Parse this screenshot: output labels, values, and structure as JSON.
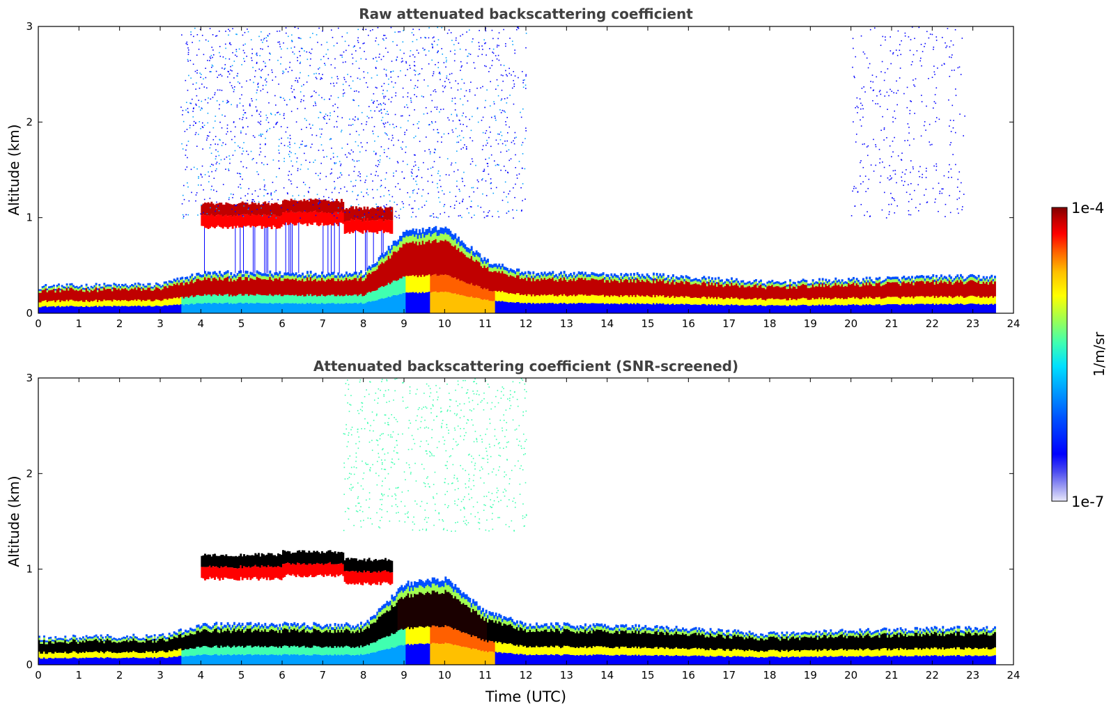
{
  "chart_data": [
    {
      "type": "heatmap",
      "title": "Raw attenuated backscattering coefficient",
      "xlabel": "",
      "ylabel": "Altitude (km)",
      "xlim": [
        0,
        24
      ],
      "ylim": [
        0,
        3
      ],
      "xticks": [
        "0",
        "1",
        "2",
        "3",
        "4",
        "5",
        "6",
        "7",
        "8",
        "9",
        "10",
        "11",
        "12",
        "13",
        "14",
        "15",
        "16",
        "17",
        "18",
        "19",
        "20",
        "21",
        "22",
        "23",
        "24"
      ],
      "yticks": [
        "0",
        "1",
        "2",
        "3"
      ],
      "data_end_time": 23.55,
      "features": [
        {
          "name": "boundary layer aerosol",
          "top_km_at_hour": [
            [
              0,
              0.28
            ],
            [
              3,
              0.3
            ],
            [
              4,
              0.42
            ],
            [
              6,
              0.42
            ],
            [
              8,
              0.42
            ],
            [
              9,
              0.85
            ],
            [
              10,
              0.9
            ],
            [
              11,
              0.55
            ],
            [
              12,
              0.42
            ],
            [
              15,
              0.4
            ],
            [
              18,
              0.32
            ],
            [
              20,
              0.35
            ],
            [
              22,
              0.38
            ],
            [
              23.5,
              0.38
            ]
          ]
        },
        {
          "name": "elevated cloud layer",
          "time_range": [
            4,
            8.7
          ],
          "altitude_km": [
            0.9,
            1.15
          ]
        },
        {
          "name": "sparse noise",
          "time_range": [
            3.5,
            12
          ],
          "altitude_km": [
            1.0,
            3.0
          ]
        }
      ]
    },
    {
      "type": "heatmap",
      "title": "Attenuated backscattering coefficient (SNR-screened)",
      "xlabel": "Time (UTC)",
      "ylabel": "Altitude (km)",
      "xlim": [
        0,
        24
      ],
      "ylim": [
        0,
        3
      ],
      "xticks": [
        "0",
        "1",
        "2",
        "3",
        "4",
        "5",
        "6",
        "7",
        "8",
        "9",
        "10",
        "11",
        "12",
        "13",
        "14",
        "15",
        "16",
        "17",
        "18",
        "19",
        "20",
        "21",
        "22",
        "23",
        "24"
      ],
      "yticks": [
        "0",
        "1",
        "2",
        "3"
      ],
      "data_end_time": 23.55,
      "features": [
        {
          "name": "boundary layer aerosol",
          "top_km_at_hour": [
            [
              0,
              0.28
            ],
            [
              3,
              0.3
            ],
            [
              4,
              0.42
            ],
            [
              6,
              0.42
            ],
            [
              8,
              0.42
            ],
            [
              9,
              0.85
            ],
            [
              10,
              0.9
            ],
            [
              11,
              0.55
            ],
            [
              12,
              0.42
            ],
            [
              15,
              0.4
            ],
            [
              18,
              0.32
            ],
            [
              20,
              0.35
            ],
            [
              22,
              0.38
            ],
            [
              23.5,
              0.38
            ]
          ]
        },
        {
          "name": "elevated cloud layer",
          "time_range": [
            4,
            8.7
          ],
          "altitude_km": [
            0.9,
            1.15
          ]
        },
        {
          "name": "sparse screened noise",
          "time_range": [
            7.5,
            12
          ],
          "altitude_km": [
            1.4,
            3.0
          ]
        }
      ]
    }
  ],
  "colorbar": {
    "label": "1/m/sr",
    "max_label": "1e-4",
    "min_label": "1e-7",
    "colors": [
      "#e8e8fa",
      "#9a9af2",
      "#4c4cf0",
      "#0000ff",
      "#0050ff",
      "#00a0ff",
      "#00e0ff",
      "#40ffb0",
      "#a0ff50",
      "#ffff00",
      "#ffc000",
      "#ff6000",
      "#ff0000",
      "#c00000",
      "#800000"
    ]
  }
}
